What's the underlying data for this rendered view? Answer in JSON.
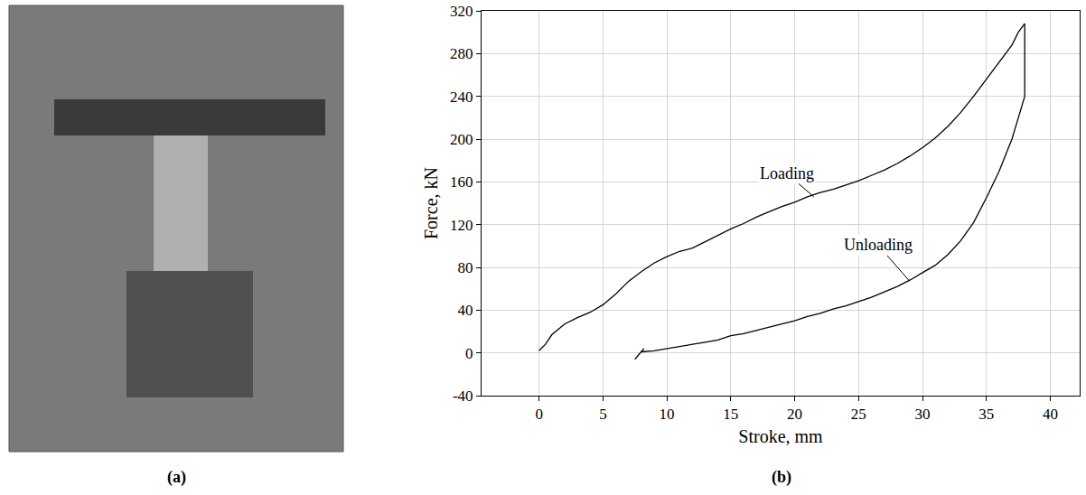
{
  "chart_data": {
    "type": "line",
    "panel_labels": [
      "(a)",
      "(b)"
    ],
    "x_label": "Stroke, mm",
    "y_label": "Force, kN",
    "xlim": [
      -4.5,
      42.3
    ],
    "ylim": [
      -40,
      320
    ],
    "xticks": [
      0,
      5,
      10,
      15,
      20,
      25,
      30,
      35,
      40
    ],
    "yticks": [
      -40,
      0,
      40,
      80,
      120,
      160,
      200,
      240,
      280,
      320
    ],
    "grid": true,
    "series": [
      {
        "name": "Loading",
        "color": "#000000",
        "x": [
          0,
          0.5,
          1,
          2,
          3,
          4,
          5,
          6,
          7,
          8,
          9,
          10,
          11,
          12,
          13,
          14,
          15,
          16,
          17,
          18,
          19,
          20,
          21,
          22,
          23,
          24,
          25,
          26,
          27,
          28,
          29,
          30,
          31,
          32,
          33,
          34,
          35,
          36,
          37,
          37.5,
          38
        ],
        "values": [
          2,
          8,
          17,
          27,
          33,
          38,
          45,
          55,
          67,
          76,
          84,
          90,
          95,
          98,
          104,
          110,
          116,
          121,
          127,
          132,
          137,
          141,
          146,
          150,
          153,
          157,
          161,
          166,
          171,
          177,
          184,
          192,
          201,
          212,
          225,
          240,
          256,
          272,
          288,
          300,
          308
        ]
      },
      {
        "name": "Unloading",
        "color": "#000000",
        "x": [
          38,
          38,
          37.5,
          37,
          36,
          35,
          34,
          33,
          32,
          31,
          30,
          29,
          28,
          27,
          26,
          25,
          24,
          23,
          22,
          21,
          20,
          19,
          18,
          17,
          16,
          15,
          14,
          13,
          12,
          11,
          10,
          9,
          8,
          8.2,
          7.8,
          7.5
        ],
        "values": [
          308,
          240,
          220,
          200,
          170,
          145,
          122,
          105,
          92,
          82,
          75,
          68,
          62,
          57,
          52,
          48,
          44,
          41,
          37,
          34,
          30,
          27,
          24,
          21,
          18,
          16,
          12,
          10,
          8,
          6,
          4,
          2,
          1,
          4,
          -2,
          -6
        ]
      }
    ],
    "annotations": [
      {
        "text": "Loading",
        "x": 21.5,
        "y": 146
      },
      {
        "text": "Unloading",
        "x": 29,
        "y": 67
      }
    ]
  }
}
